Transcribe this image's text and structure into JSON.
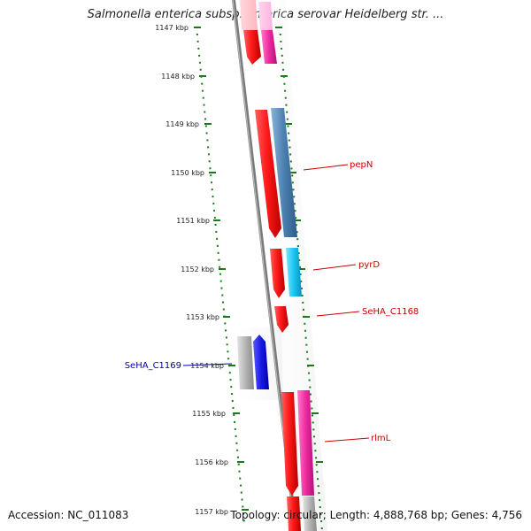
{
  "title": "Salmonella enterica subsp. enterica serovar Heidelberg str. ...",
  "footer": {
    "accession": "Accession: NC_011083",
    "stats": "Topology: circular; Length: 4,888,768 bp; Genes: 4,756"
  },
  "colors": {
    "backbone": "#808080",
    "tick_dots": "#1a7a1a",
    "forward_label": "#cc0000",
    "reverse_label": "#0000aa"
  },
  "ruler": {
    "unit": "kbp",
    "ticks": [
      "1147 kbp",
      "1148 kbp",
      "1149 kbp",
      "1150 kbp",
      "1151 kbp",
      "1152 kbp",
      "1153 kbp",
      "1154 kbp",
      "1155 kbp",
      "1156 kbp",
      "1157 kbp"
    ]
  },
  "gene_labels": [
    {
      "text": "pepN",
      "strand": "forward"
    },
    {
      "text": "pyrD",
      "strand": "forward"
    },
    {
      "text": "SeHA_C1168",
      "strand": "forward"
    },
    {
      "text": "SeHA_C1169",
      "strand": "reverse"
    },
    {
      "text": "rlmL",
      "strand": "forward"
    }
  ]
}
